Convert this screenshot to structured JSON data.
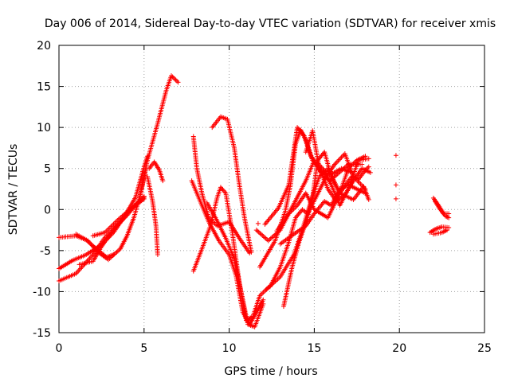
{
  "chart_data": {
    "type": "scatter",
    "title": "Day 006 of 2014, Sidereal Day-to-day VTEC variation (SDTVAR) for receiver xmis",
    "xlabel": "GPS time / hours",
    "ylabel": "SDTVAR / TECUs",
    "xlim": [
      0,
      25
    ],
    "ylim": [
      -15,
      20
    ],
    "xticks": [
      "0",
      "5",
      "10",
      "15",
      "20",
      "25"
    ],
    "yticks": [
      "-15",
      "-10",
      "-5",
      "0",
      "5",
      "10",
      "15",
      "20"
    ],
    "grid": true,
    "marker": "+",
    "color": "#ff0000",
    "series": [
      {
        "segments": [
          [
            [
              0.0,
              -7.2
            ],
            [
              0.8,
              -6.2
            ],
            [
              1.6,
              -5.5
            ],
            [
              2.5,
              -4.3
            ],
            [
              3.2,
              -2.8
            ],
            [
              3.8,
              -1.0
            ],
            [
              4.5,
              1.5
            ],
            [
              5.0,
              5.2
            ],
            [
              5.2,
              6.5
            ]
          ],
          [
            [
              0.0,
              -3.4
            ],
            [
              1.0,
              -3.2
            ],
            [
              1.6,
              -3.7
            ],
            [
              2.2,
              -4.8
            ],
            [
              2.8,
              -5.8
            ],
            [
              3.2,
              -5.5
            ]
          ],
          [
            [
              0.0,
              -8.7
            ],
            [
              1.0,
              -7.8
            ],
            [
              2.0,
              -5.5
            ],
            [
              2.7,
              -3.4
            ],
            [
              3.5,
              -1.8
            ],
            [
              4.3,
              0.2
            ],
            [
              5.0,
              1.6
            ]
          ],
          [
            [
              1.2,
              -6.7
            ],
            [
              2.0,
              -6.3
            ],
            [
              2.5,
              -4.5
            ],
            [
              3.3,
              -2.2
            ],
            [
              4.0,
              -0.7
            ],
            [
              4.6,
              0.8
            ],
            [
              5.0,
              1.5
            ]
          ],
          [
            [
              1.0,
              -3.0
            ],
            [
              1.7,
              -3.8
            ],
            [
              2.3,
              -5.2
            ],
            [
              2.9,
              -6.1
            ],
            [
              3.6,
              -4.8
            ],
            [
              4.0,
              -3.2
            ],
            [
              4.4,
              -1.0
            ],
            [
              4.8,
              2.0
            ],
            [
              5.1,
              5.0
            ]
          ],
          [
            [
              2.0,
              -3.2
            ],
            [
              2.7,
              -2.8
            ],
            [
              3.5,
              -1.2
            ],
            [
              4.0,
              -0.3
            ],
            [
              4.5,
              0.5
            ],
            [
              5.0,
              1.3
            ]
          ],
          [
            [
              5.2,
              4.0
            ],
            [
              5.5,
              1.0
            ],
            [
              5.7,
              -2.0
            ],
            [
              5.8,
              -5.5
            ]
          ],
          [
            [
              5.3,
              5.0
            ],
            [
              5.6,
              5.8
            ],
            [
              5.9,
              4.8
            ],
            [
              6.1,
              3.5
            ]
          ],
          [
            [
              4.7,
              1.0
            ],
            [
              5.2,
              6.0
            ],
            [
              5.8,
              10.5
            ],
            [
              6.3,
              14.5
            ],
            [
              6.6,
              16.3
            ],
            [
              7.0,
              15.5
            ]
          ]
        ]
      },
      {
        "segments": [
          [
            [
              7.9,
              -7.5
            ],
            [
              8.4,
              -4.8
            ],
            [
              8.9,
              -2.0
            ],
            [
              9.3,
              1.5
            ],
            [
              9.5,
              2.7
            ],
            [
              9.8,
              2.0
            ],
            [
              10.2,
              -3.0
            ],
            [
              10.6,
              -9.0
            ],
            [
              11.0,
              -13.5
            ],
            [
              11.4,
              -13.0
            ],
            [
              11.8,
              -10.5
            ],
            [
              12.3,
              -9.5
            ]
          ],
          [
            [
              7.8,
              3.5
            ],
            [
              8.3,
              1.0
            ],
            [
              8.8,
              -1.5
            ],
            [
              9.4,
              -3.8
            ],
            [
              10.0,
              -5.5
            ],
            [
              10.4,
              -8.0
            ],
            [
              10.8,
              -12.5
            ],
            [
              11.2,
              -14.0
            ],
            [
              11.6,
              -12.5
            ],
            [
              12.0,
              -11.0
            ]
          ],
          [
            [
              7.9,
              8.9
            ],
            [
              8.1,
              5.0
            ],
            [
              8.4,
              2.0
            ],
            [
              8.8,
              -1.0
            ],
            [
              9.3,
              -2.0
            ],
            [
              10.0,
              -1.5
            ],
            [
              10.6,
              -3.5
            ],
            [
              11.2,
              -5.3
            ]
          ],
          [
            [
              9.0,
              10.0
            ],
            [
              9.5,
              11.3
            ],
            [
              9.9,
              11.0
            ],
            [
              10.3,
              7.5
            ],
            [
              10.6,
              3.0
            ],
            [
              10.9,
              -1.0
            ],
            [
              11.3,
              -5.2
            ]
          ],
          [
            [
              8.7,
              0.8
            ],
            [
              9.2,
              -1.0
            ],
            [
              9.8,
              -3.5
            ],
            [
              10.3,
              -6.0
            ],
            [
              10.8,
              -11.0
            ],
            [
              11.1,
              -14.0
            ],
            [
              11.5,
              -14.3
            ],
            [
              12.0,
              -11.5
            ]
          ],
          [
            [
              11.7,
              -1.7
            ]
          ]
        ]
      },
      {
        "segments": [
          [
            [
              12.2,
              -9.7
            ],
            [
              13.0,
              -8.2
            ],
            [
              13.8,
              -5.5
            ],
            [
              14.3,
              -2.5
            ],
            [
              14.8,
              1.0
            ],
            [
              15.3,
              4.0
            ],
            [
              15.8,
              5.0
            ],
            [
              16.5,
              2.0
            ],
            [
              17.3,
              1.2
            ],
            [
              17.9,
              2.8
            ],
            [
              18.2,
              1.2
            ]
          ],
          [
            [
              11.6,
              -2.5
            ],
            [
              12.3,
              -3.8
            ],
            [
              13.0,
              -2.5
            ],
            [
              13.5,
              -0.5
            ],
            [
              14.0,
              0.5
            ],
            [
              14.5,
              2.0
            ],
            [
              15.0,
              0.0
            ],
            [
              15.8,
              -1.0
            ],
            [
              16.5,
              2.0
            ],
            [
              17.2,
              4.0
            ],
            [
              17.6,
              3.7
            ],
            [
              18.0,
              4.8
            ],
            [
              18.2,
              5.2
            ]
          ],
          [
            [
              12.1,
              -1.8
            ],
            [
              12.9,
              0.2
            ],
            [
              13.5,
              3.0
            ],
            [
              14.0,
              10.0
            ],
            [
              14.4,
              9.0
            ],
            [
              14.8,
              6.5
            ],
            [
              15.4,
              4.5
            ],
            [
              15.9,
              3.5
            ],
            [
              16.3,
              4.2
            ],
            [
              17.0,
              5.5
            ],
            [
              17.8,
              5.5
            ]
          ],
          [
            [
              11.8,
              -7.0
            ],
            [
              12.7,
              -3.8
            ],
            [
              13.3,
              -0.2
            ],
            [
              13.6,
              3.0
            ],
            [
              13.9,
              8.0
            ],
            [
              14.2,
              9.7
            ],
            [
              14.5,
              8.5
            ],
            [
              14.9,
              6.0
            ],
            [
              15.5,
              4.5
            ],
            [
              16.0,
              4.3
            ],
            [
              16.6,
              5.0
            ],
            [
              17.2,
              4.5
            ]
          ],
          [
            [
              13.2,
              -11.8
            ],
            [
              13.7,
              -7.0
            ],
            [
              14.1,
              -4.0
            ],
            [
              14.6,
              -1.0
            ],
            [
              14.9,
              1.5
            ],
            [
              15.2,
              6.0
            ],
            [
              15.6,
              7.0
            ],
            [
              16.0,
              4.0
            ],
            [
              16.5,
              2.0
            ],
            [
              17.0,
              5.0
            ],
            [
              17.5,
              6.0
            ],
            [
              18.0,
              6.5
            ]
          ],
          [
            [
              12.4,
              -9.4
            ],
            [
              13.0,
              -7.0
            ],
            [
              13.5,
              -4.0
            ],
            [
              13.9,
              -1.0
            ],
            [
              14.3,
              0.0
            ],
            [
              14.6,
              -0.5
            ],
            [
              15.1,
              1.5
            ],
            [
              15.7,
              4.0
            ],
            [
              16.2,
              5.5
            ],
            [
              16.8,
              6.8
            ],
            [
              17.3,
              4.0
            ],
            [
              18.0,
              2.5
            ]
          ],
          [
            [
              14.5,
              7.0
            ],
            [
              14.9,
              9.6
            ],
            [
              15.3,
              5.0
            ],
            [
              15.8,
              2.5
            ],
            [
              16.3,
              1.0
            ],
            [
              16.8,
              1.8
            ],
            [
              17.3,
              3.5
            ],
            [
              17.8,
              5.0
            ],
            [
              18.3,
              4.5
            ]
          ],
          [
            [
              12.8,
              -2.6
            ],
            [
              13.5,
              -0.5
            ],
            [
              14.0,
              1.5
            ],
            [
              14.5,
              3.5
            ],
            [
              15.0,
              6.0
            ],
            [
              15.5,
              5.0
            ],
            [
              16.0,
              3.0
            ],
            [
              16.5,
              0.5
            ],
            [
              17.0,
              2.5
            ],
            [
              17.6,
              6.0
            ],
            [
              18.2,
              6.2
            ]
          ],
          [
            [
              13.0,
              -4.2
            ],
            [
              13.8,
              -3.0
            ],
            [
              14.5,
              -2.0
            ],
            [
              15.0,
              -0.5
            ],
            [
              15.6,
              1.0
            ],
            [
              16.0,
              0.5
            ],
            [
              16.5,
              2.5
            ],
            [
              17.0,
              3.0
            ],
            [
              17.5,
              2.5
            ],
            [
              18.0,
              2.0
            ]
          ]
        ]
      },
      {
        "segments": [
          [
            [
              19.8,
              6.6
            ]
          ],
          [
            [
              19.8,
              3.0
            ]
          ],
          [
            [
              19.8,
              1.3
            ]
          ]
        ]
      },
      {
        "segments": [
          [
            [
              22.0,
              1.4
            ],
            [
              22.3,
              0.5
            ],
            [
              22.6,
              -0.5
            ],
            [
              22.9,
              -0.5
            ]
          ],
          [
            [
              21.8,
              -2.8
            ],
            [
              22.1,
              -2.4
            ],
            [
              22.5,
              -2.1
            ],
            [
              22.9,
              -2.2
            ]
          ],
          [
            [
              22.0,
              -3.0
            ],
            [
              22.5,
              -2.8
            ],
            [
              22.8,
              -2.5
            ]
          ],
          [
            [
              22.1,
              1.0
            ],
            [
              22.4,
              0.0
            ],
            [
              22.7,
              -0.8
            ],
            [
              22.9,
              -1.0
            ]
          ]
        ]
      }
    ]
  }
}
